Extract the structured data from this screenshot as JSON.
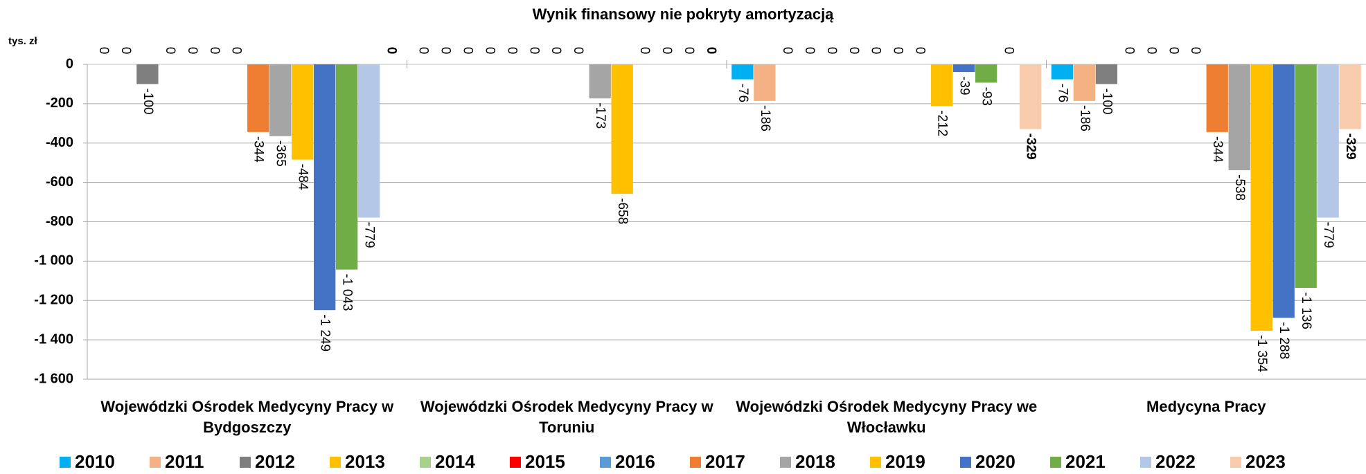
{
  "chart_data": {
    "type": "bar",
    "title": "Wynik finansowy nie pokryty amortyzacją",
    "y_label": "tys. zł",
    "categories": [
      "Wojewódzki Ośrodek Medycyny Pracy w Bydgoszczy",
      "Wojewódzki Ośrodek Medycyny Pracy w Toruniu",
      "Wojewódzki Ośrodek Medycyny Pracy we Włocławku",
      "Medycyna Pracy"
    ],
    "ylim": [
      -1600,
      0
    ],
    "yticks": [
      0,
      -200,
      -400,
      -600,
      -800,
      {
        "value": -1000,
        "label": "-1 000"
      },
      {
        "value": -1200,
        "label": "-1 200"
      },
      {
        "value": -1400,
        "label": "-1 400"
      },
      {
        "value": -1600,
        "label": "-1 600"
      }
    ],
    "grid": true,
    "legend": "bottom",
    "series": [
      {
        "name": "2010",
        "color": "#00b0f0",
        "values": [
          0,
          0,
          -76,
          -76
        ]
      },
      {
        "name": "2011",
        "color": "#f4b183",
        "values": [
          0,
          0,
          -186,
          -186
        ]
      },
      {
        "name": "2012",
        "color": "#7f7f7f",
        "values": [
          -100,
          0,
          0,
          -100
        ]
      },
      {
        "name": "2013",
        "color": "#ffc000",
        "values": [
          0,
          0,
          0,
          0
        ]
      },
      {
        "name": "2014",
        "color": "#a9d18e",
        "values": [
          0,
          0,
          0,
          0
        ]
      },
      {
        "name": "2015",
        "color": "#ff0000",
        "values": [
          0,
          0,
          0,
          0
        ]
      },
      {
        "name": "2016",
        "color": "#5b9bd5",
        "values": [
          0,
          0,
          0,
          0
        ]
      },
      {
        "name": "2017",
        "color": "#ed7d31",
        "values": [
          -344,
          0,
          0,
          -344
        ]
      },
      {
        "name": "2018",
        "color": "#a5a5a5",
        "values": [
          -365,
          -173,
          0,
          -538
        ]
      },
      {
        "name": "2019",
        "color": "#ffc000",
        "values": [
          -484,
          -658,
          -212,
          -1354
        ],
        "value_labels": [
          "-484",
          "-658",
          "-212",
          "-1 354"
        ]
      },
      {
        "name": "2020",
        "color": "#4472c4",
        "values": [
          -1249,
          0,
          -39,
          -1288
        ],
        "value_labels": [
          "-1 249",
          "0",
          "-39",
          "-1 288"
        ]
      },
      {
        "name": "2021",
        "color": "#70ad47",
        "values": [
          -1043,
          0,
          -93,
          -1136
        ],
        "value_labels": [
          "-1 043",
          "0",
          "-93",
          "-1 136"
        ]
      },
      {
        "name": "2022",
        "color": "#b4c7e7",
        "values": [
          -779,
          0,
          0,
          -779
        ]
      },
      {
        "name": "2023",
        "color": "#f8cbad",
        "values": [
          0,
          0,
          -329,
          -329
        ],
        "label_bold": true
      }
    ]
  }
}
